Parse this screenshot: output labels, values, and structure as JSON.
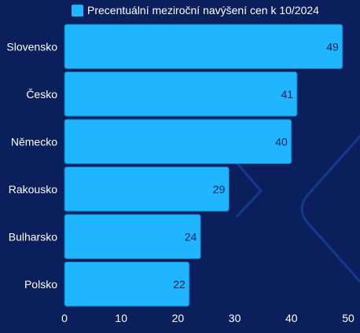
{
  "colors": {
    "background": "#0b1f5c",
    "bar": "#1fb6ff",
    "bar_border": "#0d6fb0",
    "label_text": "#ffffff",
    "value_text": "#0b1f5c",
    "decoration": "#17398a"
  },
  "chart_data": {
    "type": "bar",
    "orientation": "horizontal",
    "categories": [
      "Slovensko",
      "Česko",
      "Německo",
      "Rakousko",
      "Bulharsko",
      "Polsko"
    ],
    "series": [
      {
        "name": "Precentuální meziroční navýšení cen k 10/2024",
        "values": [
          49,
          41,
          40,
          29,
          24,
          22
        ]
      }
    ],
    "xlim": [
      0,
      50
    ],
    "xticks": [
      0,
      10,
      20,
      30,
      40,
      50
    ],
    "grid": false,
    "legend_position": "top",
    "data_labels": true
  }
}
